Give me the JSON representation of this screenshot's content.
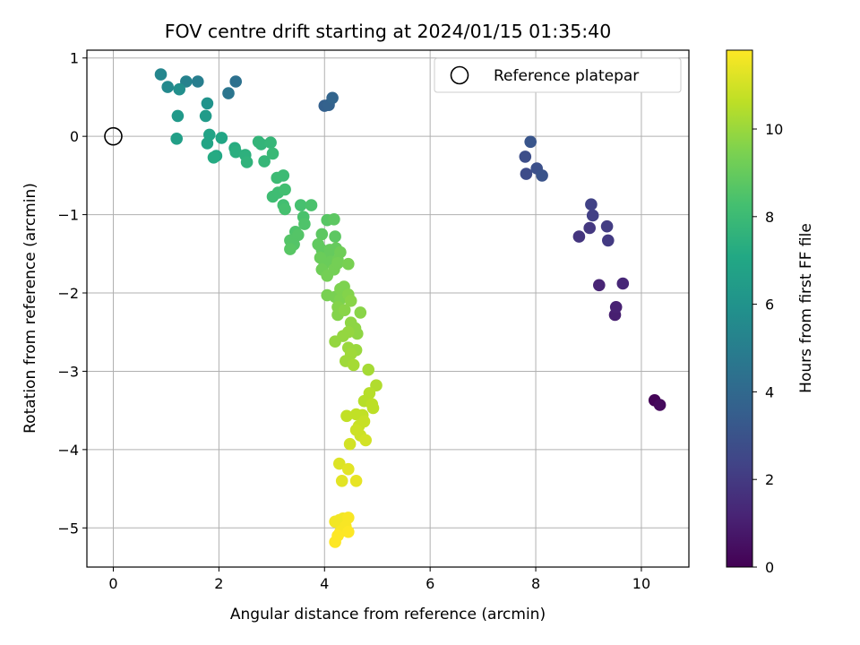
{
  "chart_data": {
    "type": "scatter",
    "title": "FOV centre drift starting at 2024/01/15 01:35:40",
    "xlabel": "Angular distance from reference (arcmin)",
    "ylabel": "Rotation from reference (arcmin)",
    "xlim": [
      -0.5,
      10.9
    ],
    "ylim": [
      -5.5,
      1.1
    ],
    "xticks": [
      0,
      2,
      4,
      6,
      8,
      10
    ],
    "yticks": [
      -5,
      -4,
      -3,
      -2,
      -1,
      0,
      1
    ],
    "grid": true,
    "legend": {
      "placement": "upper right",
      "entries": [
        "Reference platepar"
      ]
    },
    "reference": {
      "x": 0,
      "y": 0,
      "label": "Reference platepar"
    },
    "colorbar": {
      "label": "Hours from first FF file",
      "colormap": "viridis",
      "range": [
        0,
        11.8
      ],
      "ticks": [
        0,
        2,
        4,
        6,
        8,
        10
      ]
    },
    "series": [
      {
        "points": [
          [
            10.25,
            -3.37,
            0.1
          ],
          [
            10.35,
            -3.43,
            0.3
          ],
          [
            9.5,
            -2.28,
            1.0
          ],
          [
            9.52,
            -2.18,
            1.1
          ],
          [
            9.2,
            -1.9,
            1.2
          ],
          [
            9.65,
            -1.88,
            1.3
          ],
          [
            8.82,
            -1.28,
            1.8
          ],
          [
            9.02,
            -1.17,
            1.9
          ],
          [
            9.37,
            -1.33,
            2.0
          ],
          [
            9.35,
            -1.15,
            2.1
          ],
          [
            9.08,
            -1.01,
            2.2
          ],
          [
            9.05,
            -0.87,
            2.3
          ],
          [
            7.82,
            -0.48,
            2.7
          ],
          [
            7.8,
            -0.26,
            2.8
          ],
          [
            8.02,
            -0.41,
            2.9
          ],
          [
            8.12,
            -0.5,
            3.0
          ],
          [
            7.9,
            -0.07,
            3.1
          ],
          [
            4.0,
            0.39,
            3.6
          ],
          [
            4.08,
            0.4,
            3.7
          ],
          [
            4.15,
            0.49,
            3.8
          ],
          [
            2.32,
            0.7,
            4.4
          ],
          [
            2.18,
            0.55,
            4.6
          ],
          [
            1.6,
            0.7,
            5.0
          ],
          [
            1.38,
            0.7,
            5.2
          ],
          [
            0.9,
            0.79,
            5.4
          ],
          [
            1.03,
            0.63,
            5.5
          ],
          [
            1.25,
            0.6,
            5.8
          ],
          [
            1.78,
            0.42,
            6.0
          ],
          [
            1.22,
            0.26,
            6.3
          ],
          [
            1.75,
            0.26,
            6.4
          ],
          [
            1.2,
            -0.03,
            6.6
          ],
          [
            1.82,
            0.02,
            6.8
          ],
          [
            1.78,
            -0.09,
            6.9
          ],
          [
            2.05,
            -0.02,
            7.0
          ],
          [
            1.95,
            -0.25,
            7.1
          ],
          [
            1.9,
            -0.27,
            7.2
          ],
          [
            2.3,
            -0.15,
            7.3
          ],
          [
            2.32,
            -0.2,
            7.4
          ],
          [
            2.5,
            -0.24,
            7.5
          ],
          [
            2.53,
            -0.33,
            7.6
          ],
          [
            2.75,
            -0.07,
            7.7
          ],
          [
            2.8,
            -0.1,
            7.7
          ],
          [
            2.98,
            -0.08,
            7.8
          ],
          [
            2.86,
            -0.32,
            7.8
          ],
          [
            3.02,
            -0.22,
            7.9
          ],
          [
            3.22,
            -0.5,
            8.0
          ],
          [
            3.1,
            -0.53,
            8.0
          ],
          [
            3.02,
            -0.77,
            8.1
          ],
          [
            3.12,
            -0.72,
            8.1
          ],
          [
            3.25,
            -0.68,
            8.2
          ],
          [
            3.22,
            -0.88,
            8.2
          ],
          [
            3.25,
            -0.93,
            8.3
          ],
          [
            3.55,
            -0.88,
            8.3
          ],
          [
            3.75,
            -0.88,
            8.4
          ],
          [
            3.6,
            -1.03,
            8.4
          ],
          [
            3.62,
            -1.12,
            8.5
          ],
          [
            3.45,
            -1.22,
            8.5
          ],
          [
            3.5,
            -1.26,
            8.6
          ],
          [
            3.35,
            -1.33,
            8.6
          ],
          [
            3.42,
            -1.38,
            8.6
          ],
          [
            3.35,
            -1.44,
            8.7
          ],
          [
            4.05,
            -1.07,
            8.7
          ],
          [
            4.18,
            -1.06,
            8.8
          ],
          [
            3.95,
            -1.25,
            8.8
          ],
          [
            4.2,
            -1.28,
            8.8
          ],
          [
            3.88,
            -1.38,
            8.9
          ],
          [
            3.95,
            -1.45,
            8.9
          ],
          [
            4.1,
            -1.45,
            9.0
          ],
          [
            4.22,
            -1.43,
            9.0
          ],
          [
            4.08,
            -1.52,
            9.0
          ],
          [
            3.92,
            -1.55,
            9.1
          ],
          [
            4.0,
            -1.62,
            9.1
          ],
          [
            4.12,
            -1.6,
            9.1
          ],
          [
            4.3,
            -1.48,
            9.2
          ],
          [
            4.25,
            -1.58,
            9.2
          ],
          [
            3.95,
            -1.7,
            9.2
          ],
          [
            4.05,
            -1.78,
            9.3
          ],
          [
            4.18,
            -1.7,
            9.3
          ],
          [
            4.25,
            -1.62,
            9.3
          ],
          [
            4.45,
            -1.63,
            9.4
          ],
          [
            4.05,
            -2.03,
            9.4
          ],
          [
            4.2,
            -2.05,
            9.4
          ],
          [
            4.3,
            -1.95,
            9.5
          ],
          [
            4.37,
            -1.92,
            9.5
          ],
          [
            4.3,
            -2.08,
            9.5
          ],
          [
            4.45,
            -2.02,
            9.6
          ],
          [
            4.25,
            -2.18,
            9.6
          ],
          [
            4.25,
            -2.28,
            9.6
          ],
          [
            4.5,
            -2.1,
            9.7
          ],
          [
            4.38,
            -2.22,
            9.7
          ],
          [
            4.68,
            -2.25,
            9.7
          ],
          [
            4.5,
            -2.38,
            9.8
          ],
          [
            4.58,
            -2.45,
            9.8
          ],
          [
            4.62,
            -2.52,
            9.8
          ],
          [
            4.45,
            -2.5,
            9.9
          ],
          [
            4.35,
            -2.55,
            9.9
          ],
          [
            4.2,
            -2.62,
            9.9
          ],
          [
            4.45,
            -2.7,
            10.0
          ],
          [
            4.6,
            -2.73,
            10.0
          ],
          [
            4.5,
            -2.78,
            10.1
          ],
          [
            4.4,
            -2.87,
            10.1
          ],
          [
            4.55,
            -2.92,
            10.2
          ],
          [
            4.83,
            -2.98,
            10.2
          ],
          [
            4.98,
            -3.18,
            10.4
          ],
          [
            4.85,
            -3.28,
            10.5
          ],
          [
            4.75,
            -3.38,
            10.5
          ],
          [
            4.9,
            -3.42,
            10.6
          ],
          [
            4.92,
            -3.47,
            10.6
          ],
          [
            4.6,
            -3.55,
            10.7
          ],
          [
            4.72,
            -3.56,
            10.7
          ],
          [
            4.42,
            -3.57,
            10.7
          ],
          [
            4.75,
            -3.64,
            10.8
          ],
          [
            4.65,
            -3.7,
            10.8
          ],
          [
            4.6,
            -3.75,
            10.9
          ],
          [
            4.68,
            -3.82,
            10.9
          ],
          [
            4.78,
            -3.88,
            11.0
          ],
          [
            4.48,
            -3.93,
            11.0
          ],
          [
            4.28,
            -4.18,
            11.2
          ],
          [
            4.45,
            -4.25,
            11.3
          ],
          [
            4.33,
            -4.4,
            11.3
          ],
          [
            4.6,
            -4.4,
            11.4
          ],
          [
            4.2,
            -4.92,
            11.6
          ],
          [
            4.28,
            -4.9,
            11.6
          ],
          [
            4.35,
            -4.88,
            11.6
          ],
          [
            4.45,
            -4.87,
            11.7
          ],
          [
            4.4,
            -4.98,
            11.7
          ],
          [
            4.3,
            -5.05,
            11.7
          ],
          [
            4.45,
            -5.05,
            11.8
          ],
          [
            4.25,
            -5.1,
            11.8
          ],
          [
            4.2,
            -5.18,
            11.8
          ]
        ]
      }
    ]
  }
}
